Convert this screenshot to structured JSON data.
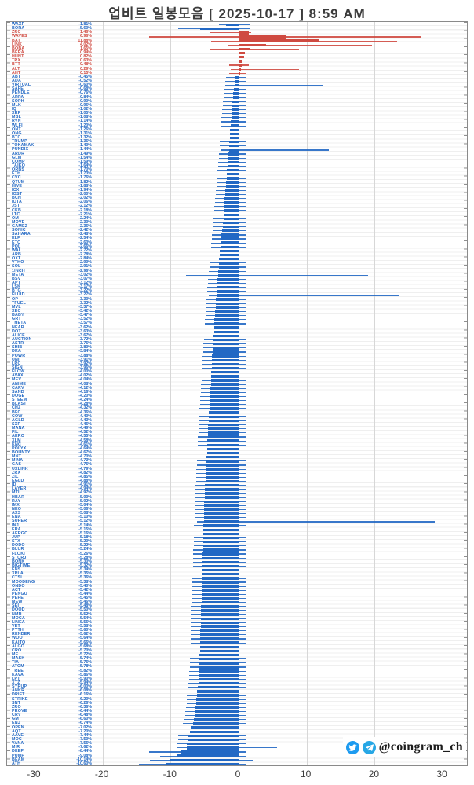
{
  "title": "업비트 일봉모음 [ 2025-10-17 ]  8:59 AM",
  "watermark": {
    "handle": "@coingram_ch",
    "icons": [
      "twitter-icon",
      "telegram-icon"
    ],
    "icon_colors": {
      "twitter": "#1d9bf0",
      "telegram": "#27a7e5"
    }
  },
  "colors": {
    "positive": "#cf4a41",
    "negative": "#2268c4",
    "grid": "#d7d7d7",
    "frame": "#8a8a8a",
    "title_text": "#3c3c3c"
  },
  "chart_data": {
    "type": "bar",
    "orientation": "horizontal",
    "title": "업비트 일봉모음 [ 2025-10-17 ]  8:59 AM",
    "xlabel": "",
    "ylabel": "",
    "xlim": [
      -33,
      33
    ],
    "xticks": [
      -30,
      -20,
      -10,
      0,
      10,
      20,
      30
    ],
    "grid": true,
    "value_unit": "%",
    "row_fields": [
      "ticker",
      "pct",
      "low",
      "high"
    ],
    "rows": [
      [
        "WAXP",
        -1.81,
        -2.9,
        1.7
      ],
      [
        "BORA",
        -5.6,
        -8.9,
        1.7
      ],
      [
        "ZRC",
        1.46,
        -4.3,
        1.9
      ],
      [
        "WAVES",
        6.96,
        -13.2,
        26.8
      ],
      [
        "BAT",
        11.88,
        -4.0,
        23.3
      ],
      [
        "LINK",
        4.02,
        -1.5,
        19.6
      ],
      [
        "BOBA",
        1.65,
        -4.1,
        8.9
      ],
      [
        "BERA",
        0.94,
        null,
        null
      ],
      [
        "HUNT",
        0.82,
        null,
        null
      ],
      [
        "TRX",
        0.63,
        null,
        null
      ],
      [
        "BTT",
        0.48,
        null,
        null
      ],
      [
        "ALT",
        0.29,
        -1.2,
        8.9
      ],
      [
        "AHT",
        0.15,
        null,
        null
      ],
      [
        "ABT",
        -0.45,
        null,
        null
      ],
      [
        "ADA",
        -0.52,
        null,
        null
      ],
      [
        "VIRTUAL",
        -0.6,
        -2.0,
        12.3
      ],
      [
        "SAFE",
        -0.68,
        null,
        null
      ],
      [
        "PENDLE",
        -0.76,
        null,
        null
      ],
      [
        "ARPA",
        -0.84,
        null,
        null
      ],
      [
        "SOPH",
        -0.9,
        null,
        null
      ],
      [
        "MLK",
        -0.96,
        null,
        null
      ],
      [
        "IQ",
        -1.02,
        null,
        null
      ],
      [
        "XRP",
        -1.05,
        null,
        null
      ],
      [
        "MBL",
        -1.08,
        null,
        null
      ],
      [
        "RVN",
        -1.14,
        null,
        null
      ],
      [
        "WLFI",
        -1.2,
        null,
        null
      ],
      [
        "ONT",
        -1.26,
        null,
        null
      ],
      [
        "ONG",
        -1.31,
        null,
        null
      ],
      [
        "BTC",
        -1.32,
        null,
        null
      ],
      [
        "TRUMP",
        -1.36,
        null,
        null
      ],
      [
        "TOKAMAK",
        -1.4,
        null,
        null
      ],
      [
        "PUNDIX",
        -1.44,
        -2.6,
        13.3
      ],
      [
        "ARDR",
        -1.49,
        null,
        null
      ],
      [
        "GLM",
        -1.54,
        null,
        null
      ],
      [
        "COMP",
        -1.59,
        null,
        null
      ],
      [
        "TAIKO",
        -1.64,
        null,
        null
      ],
      [
        "ORBS",
        -1.7,
        null,
        null
      ],
      [
        "ETH",
        -1.73,
        null,
        null
      ],
      [
        "CVC",
        -1.76,
        null,
        null
      ],
      [
        "QTUM",
        -1.82,
        null,
        null
      ],
      [
        "HIVE",
        -1.88,
        null,
        null
      ],
      [
        "ICX",
        -1.94,
        null,
        null
      ],
      [
        "IOST",
        -2.0,
        null,
        null
      ],
      [
        "BCH",
        -2.02,
        null,
        null
      ],
      [
        "IOTA",
        -2.06,
        null,
        null
      ],
      [
        "JST",
        -2.12,
        null,
        null
      ],
      [
        "CKB",
        -2.18,
        null,
        null
      ],
      [
        "LTC",
        -2.21,
        null,
        null
      ],
      [
        "OM",
        -2.24,
        null,
        null
      ],
      [
        "MOVE",
        -2.3,
        null,
        null
      ],
      [
        "GAME2",
        -2.36,
        null,
        null
      ],
      [
        "SONIC",
        -2.42,
        null,
        null
      ],
      [
        "SAHARA",
        -2.48,
        null,
        null
      ],
      [
        "ELF",
        -2.54,
        null,
        null
      ],
      [
        "ETC",
        -2.6,
        null,
        null
      ],
      [
        "POL",
        -2.66,
        null,
        null
      ],
      [
        "WAL",
        -2.72,
        null,
        null
      ],
      [
        "ARB",
        -2.78,
        null,
        null
      ],
      [
        "OXT",
        -2.84,
        null,
        null
      ],
      [
        "VTHO",
        -2.9,
        null,
        null
      ],
      [
        "SOL",
        -2.91,
        null,
        null
      ],
      [
        "1INCH",
        -2.96,
        null,
        null
      ],
      [
        "META",
        -3.02,
        -7.7,
        19.0
      ],
      [
        "BSV",
        -3.07,
        null,
        null
      ],
      [
        "APT",
        -3.12,
        null,
        null
      ],
      [
        "LSK",
        -3.17,
        null,
        null
      ],
      [
        "BTG",
        -3.22,
        null,
        null
      ],
      [
        "FLUID",
        -3.27,
        -4.4,
        23.5
      ],
      [
        "OP",
        -3.3,
        null,
        null
      ],
      [
        "TFUEL",
        -3.32,
        null,
        null
      ],
      [
        "MVL",
        -3.37,
        null,
        null
      ],
      [
        "XEC",
        -3.42,
        null,
        null
      ],
      [
        "BABY",
        -3.47,
        null,
        null
      ],
      [
        "GRT",
        -3.52,
        null,
        null
      ],
      [
        "THETA",
        -3.57,
        null,
        null
      ],
      [
        "NEAR",
        -3.62,
        null,
        null
      ],
      [
        "DOT",
        -3.63,
        null,
        null
      ],
      [
        "ALICE",
        -3.67,
        null,
        null
      ],
      [
        "AUCTION",
        -3.72,
        null,
        null
      ],
      [
        "ASTR",
        -3.76,
        null,
        null
      ],
      [
        "SHIB",
        -3.8,
        null,
        null
      ],
      [
        "DKA",
        -3.84,
        null,
        null
      ],
      [
        "POWR",
        -3.88,
        null,
        null
      ],
      [
        "UNI",
        -3.91,
        null,
        null
      ],
      [
        "LRC",
        -3.92,
        null,
        null
      ],
      [
        "SIGN",
        -3.96,
        null,
        null
      ],
      [
        "FLOW",
        -4.0,
        null,
        null
      ],
      [
        "AVAX",
        -4.02,
        null,
        null
      ],
      [
        "MEV",
        -4.04,
        null,
        null
      ],
      [
        "ANIME",
        -4.08,
        null,
        null
      ],
      [
        "CARV",
        -4.12,
        null,
        null
      ],
      [
        "SAND",
        -4.16,
        null,
        null
      ],
      [
        "DOGE",
        -4.2,
        null,
        null
      ],
      [
        "STEEM",
        -4.24,
        null,
        null
      ],
      [
        "BLAST",
        -4.28,
        null,
        null
      ],
      [
        "CHZ",
        -4.32,
        null,
        null
      ],
      [
        "BFC",
        -4.36,
        null,
        null
      ],
      [
        "COW",
        -4.4,
        null,
        null
      ],
      [
        "AGLD",
        -4.43,
        null,
        null
      ],
      [
        "SXP",
        -4.46,
        null,
        null
      ],
      [
        "MANA",
        -4.49,
        null,
        null
      ],
      [
        "FIL",
        -4.52,
        null,
        null
      ],
      [
        "AERO",
        -4.55,
        null,
        null
      ],
      [
        "XLM",
        -4.58,
        null,
        null
      ],
      [
        "KNC",
        -4.61,
        null,
        null
      ],
      [
        "POLYX",
        -4.64,
        null,
        null
      ],
      [
        "BOUNTY",
        -4.67,
        null,
        null
      ],
      [
        "MNT",
        -4.7,
        null,
        null
      ],
      [
        "MINA",
        -4.73,
        null,
        null
      ],
      [
        "GAS",
        -4.76,
        null,
        null
      ],
      [
        "UXLINK",
        -4.79,
        null,
        null
      ],
      [
        "ZRX",
        -4.82,
        null,
        null
      ],
      [
        "ZIL",
        -4.85,
        null,
        null
      ],
      [
        "EGLD",
        -4.88,
        null,
        null
      ],
      [
        "ID",
        -4.91,
        null,
        null
      ],
      [
        "LAYER",
        -4.94,
        null,
        null
      ],
      [
        "MTL",
        -4.97,
        null,
        null
      ],
      [
        "HBAR",
        -5.0,
        null,
        null
      ],
      [
        "RAY",
        -5.02,
        null,
        null
      ],
      [
        "IMX",
        -5.04,
        null,
        null
      ],
      [
        "NEO",
        -5.06,
        null,
        null
      ],
      [
        "AXS",
        -5.08,
        null,
        null
      ],
      [
        "ENA",
        -5.1,
        null,
        null
      ],
      [
        "SUPER",
        -5.12,
        -6.1,
        28.8
      ],
      [
        "INJ",
        -5.14,
        null,
        null
      ],
      [
        "ERA",
        -5.15,
        null,
        null
      ],
      [
        "AERGO",
        -5.16,
        null,
        null
      ],
      [
        "JUP",
        -5.18,
        null,
        null
      ],
      [
        "STX",
        -5.2,
        null,
        null
      ],
      [
        "DODO",
        -5.22,
        null,
        null
      ],
      [
        "BLUR",
        -5.24,
        null,
        null
      ],
      [
        "FLOKI",
        -5.26,
        null,
        null
      ],
      [
        "STORJ",
        -5.28,
        null,
        null
      ],
      [
        "BONK",
        -5.3,
        null,
        null
      ],
      [
        "BIGTIME",
        -5.32,
        null,
        null
      ],
      [
        "ENS",
        -5.34,
        null,
        null
      ],
      [
        "XPLA",
        -5.35,
        null,
        null
      ],
      [
        "CTSI",
        -5.36,
        null,
        null
      ],
      [
        "MOODENG",
        -5.38,
        null,
        null
      ],
      [
        "ONDO",
        -5.4,
        null,
        null
      ],
      [
        "ACT",
        -5.42,
        null,
        null
      ],
      [
        "PENGU",
        -5.44,
        null,
        null
      ],
      [
        "PEPE",
        -5.45,
        null,
        null
      ],
      [
        "MEW",
        -5.46,
        null,
        null
      ],
      [
        "SEI",
        -5.48,
        null,
        null
      ],
      [
        "DOOD",
        -5.5,
        null,
        null
      ],
      [
        "NMR",
        -5.52,
        null,
        null
      ],
      [
        "MOCA",
        -5.54,
        null,
        null
      ],
      [
        "LINEA",
        -5.56,
        null,
        null
      ],
      [
        "VET",
        -5.58,
        null,
        null
      ],
      [
        "PYTH",
        -5.6,
        null,
        null
      ],
      [
        "RENDER",
        -5.62,
        null,
        null
      ],
      [
        "WOO",
        -5.64,
        null,
        null
      ],
      [
        "KAITO",
        -5.66,
        null,
        null
      ],
      [
        "ALGO",
        -5.68,
        null,
        null
      ],
      [
        "CRO",
        -5.7,
        null,
        null
      ],
      [
        "ME",
        -5.72,
        null,
        null
      ],
      [
        "MASK",
        -5.74,
        null,
        null
      ],
      [
        "TIA",
        -5.76,
        null,
        null
      ],
      [
        "ATOM",
        -5.78,
        null,
        null
      ],
      [
        "TREE",
        -5.82,
        null,
        null
      ],
      [
        "KAVA",
        -5.86,
        null,
        null
      ],
      [
        "LPT",
        -5.9,
        null,
        null
      ],
      [
        "XTZ",
        -5.94,
        null,
        null
      ],
      [
        "SYRUP",
        -6.0,
        null,
        null
      ],
      [
        "ANKR",
        -6.08,
        null,
        null
      ],
      [
        "DRIFT",
        -6.16,
        null,
        null
      ],
      [
        "STRIKE",
        -6.2,
        null,
        null
      ],
      [
        "SNT",
        -6.26,
        null,
        null
      ],
      [
        "ZRO",
        -6.36,
        null,
        null
      ],
      [
        "PROVE",
        -6.44,
        null,
        null
      ],
      [
        "CRV",
        -6.48,
        null,
        null
      ],
      [
        "GMT",
        -6.6,
        null,
        null
      ],
      [
        "ENJ",
        -6.74,
        null,
        null
      ],
      [
        "OPEN",
        -7.02,
        null,
        null
      ],
      [
        "AQT",
        -7.2,
        null,
        null
      ],
      [
        "AAVE",
        -7.44,
        null,
        null
      ],
      [
        "MOC",
        -7.5,
        null,
        null
      ],
      [
        "VANA",
        -7.56,
        null,
        null
      ],
      [
        "MIR",
        -7.62,
        -9.0,
        5.6
      ],
      [
        "DEEP",
        -8.44,
        -13.2,
        1.0
      ],
      [
        "PUMP",
        -9.08,
        -11.5,
        1.0
      ],
      [
        "BEAM",
        -10.14,
        -13.0,
        2.2
      ],
      [
        "ATH",
        -10.6,
        -14.6,
        1.0
      ]
    ]
  }
}
